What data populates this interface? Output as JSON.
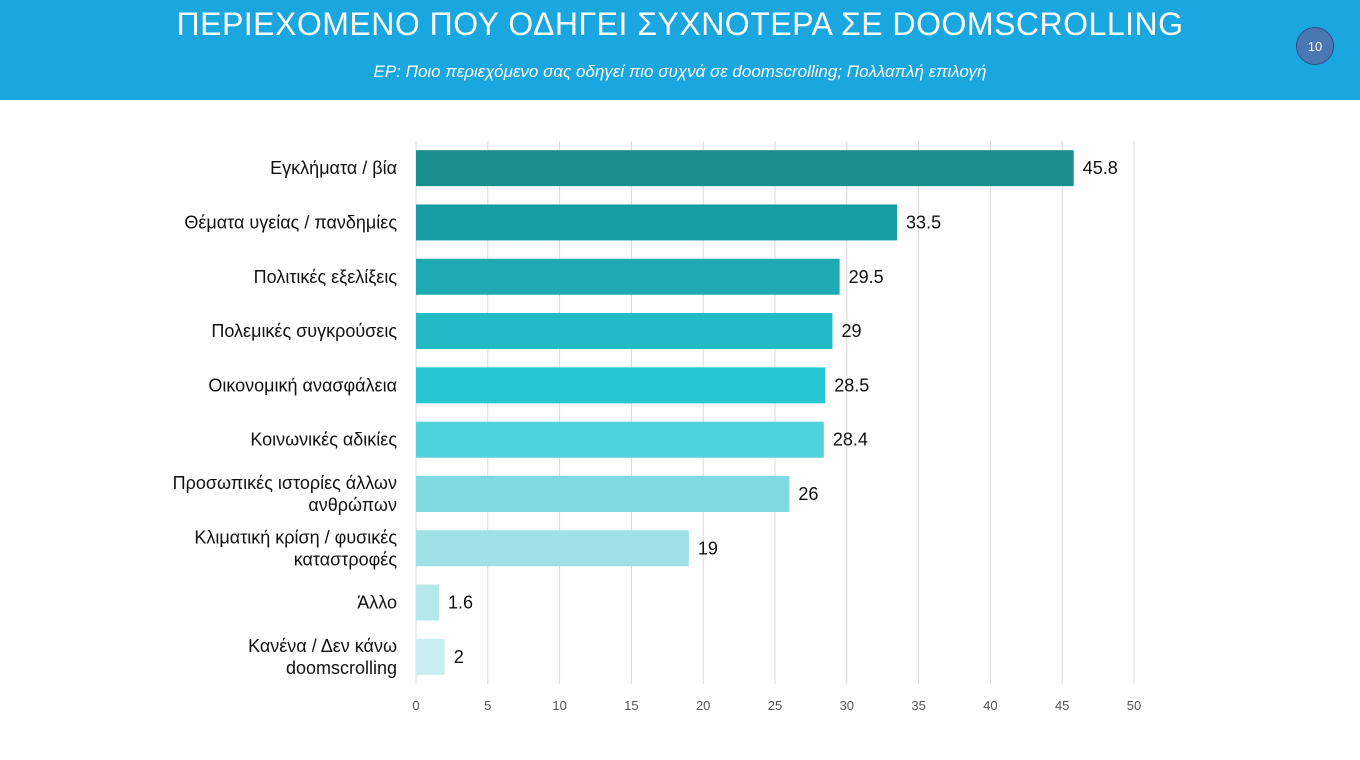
{
  "header": {
    "title": "ΠΕΡΙΕΧΟΜΕΝΟ ΠΟΥ ΟΔΗΓΕΙ ΣΥΧΝΟΤΕΡΑ ΣΕ DOOMSCROLLING",
    "subtitle": "ΕΡ: Ποιο περιεχόμενο σας οδηγεί πιο συχνά σε doomscrolling; Πολλαπλή επιλογή",
    "page_number": "10",
    "background_color": "#1aa6df",
    "badge_color": "#4a78b5"
  },
  "chart_data": {
    "type": "bar",
    "orientation": "horizontal",
    "title": "",
    "xlabel": "",
    "ylabel": "",
    "xlim": [
      0,
      50
    ],
    "ticks": [
      0,
      5,
      10,
      15,
      20,
      25,
      30,
      35,
      40,
      45,
      50
    ],
    "grid": true,
    "categories": [
      [
        "Εγκλήματα / βία"
      ],
      [
        "Θέματα υγείας / πανδημίες"
      ],
      [
        "Πολιτικές εξελίξεις"
      ],
      [
        "Πολεμικές συγκρούσεις"
      ],
      [
        "Οικονομική ανασφάλεια"
      ],
      [
        "Κοινωνικές αδικίες"
      ],
      [
        "Προσωπικές ιστορίες άλλων",
        "ανθρώπων"
      ],
      [
        "Κλιματική κρίση / φυσικές",
        "καταστροφές"
      ],
      [
        "Άλλο"
      ],
      [
        "Κανένα / Δεν κάνω",
        "doomscrolling"
      ]
    ],
    "values": [
      45.8,
      33.5,
      29.5,
      29,
      28.5,
      28.4,
      26,
      19,
      1.6,
      2
    ],
    "value_labels": [
      "45.8",
      "33.5",
      "29.5",
      "29",
      "28.5",
      "28.4",
      "26",
      "19",
      "1.6",
      "2"
    ],
    "bar_colors": [
      "#1b8f8f",
      "#1a9ca4",
      "#1eaab3",
      "#22bbc5",
      "#28c6d2",
      "#4fd2db",
      "#7ed9e1",
      "#9fe1e7",
      "#b5e8ed",
      "#c8eef2"
    ]
  }
}
